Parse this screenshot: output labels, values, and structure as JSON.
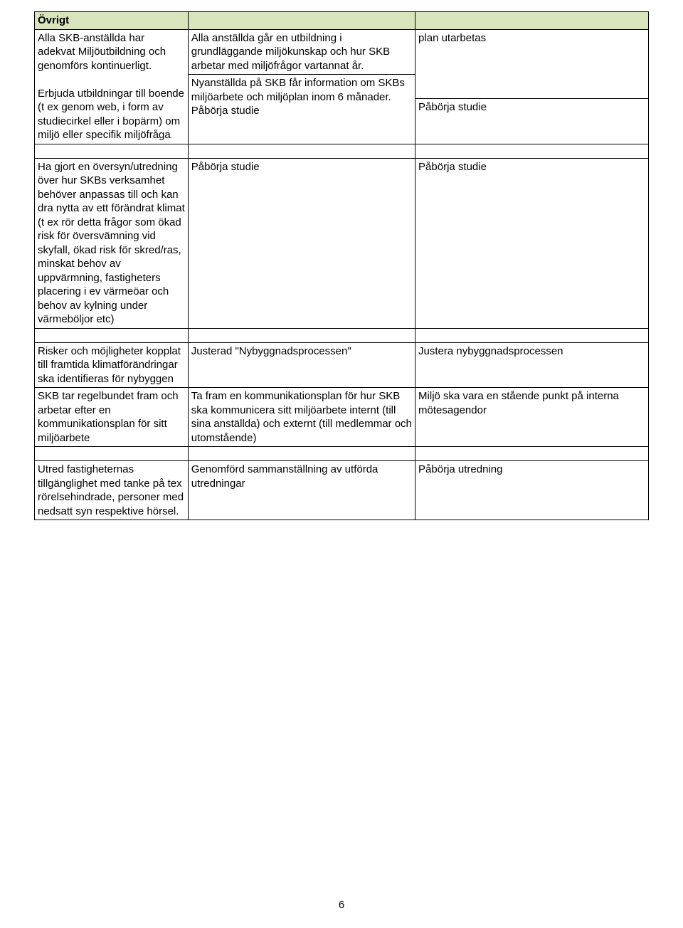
{
  "colors": {
    "header_bg": "#d8e4bc",
    "border": "#000000",
    "text": "#000000",
    "page_bg": "#ffffff"
  },
  "typography": {
    "font_family": "Arial",
    "base_fontsize_pt": 11,
    "header_weight": "bold"
  },
  "layout": {
    "col_widths_percent": [
      25,
      37,
      38
    ]
  },
  "section_header": "Övrigt",
  "rows": {
    "r1": {
      "c1": "Alla SKB-anställda har adekvat Miljöutbildning och genomförs kontinuerligt.",
      "c2": "Alla anställda går en utbildning i grundläggande miljökunskap och hur SKB arbetar med miljöfrågor vartannat år.",
      "c3": "plan utarbetas"
    },
    "r2": {
      "c2": "Nyanställda på SKB får information om SKBs miljöarbete och miljöplan inom 6 månader."
    },
    "r3": {
      "c1": "Erbjuda utbildningar till boende (t ex genom web, i form av studiecirkel eller i bopärm) om miljö eller specifik miljöfråga",
      "c2": "Påbörja studie",
      "c3": "Påbörja studie"
    },
    "r4": {
      "c1": "Ha gjort en översyn/utredning över hur SKBs verksamhet behöver anpassas till och kan dra nytta av ett förändrat klimat (t ex rör detta frågor som ökad risk för översvämning vid skyfall, ökad risk för skred/ras, minskat behov av uppvärmning, fastigheters placering i ev värmeöar och behov av kylning under värmeböljor etc)",
      "c2": "Påbörja studie",
      "c3": "Påbörja studie"
    },
    "r5": {
      "c1": "Risker och möjligheter kopplat till framtida klimatförändringar ska identifieras för nybyggen",
      "c2": "Justerad \"Nybyggnadsprocessen\"",
      "c3": "Justera nybyggnadsprocessen"
    },
    "r6": {
      "c1": "SKB tar regelbundet fram och arbetar efter en kommunikationsplan för sitt miljöarbete",
      "c2": " Ta fram  en kommunikationsplan för hur SKB ska kommunicera sitt miljöarbete internt (till sina anställda) och externt (till medlemmar och utomstående)",
      "c3": "Miljö ska vara en stående punkt på interna mötesagendor"
    },
    "r7": {
      "c1": "Utred fastigheternas tillgänglighet med tanke på tex rörelsehindrade, personer med nedsatt syn respektive hörsel.",
      "c2": "Genomförd sammanställning av utförda utredningar",
      "c3": "Påbörja utredning"
    }
  },
  "page_number": "6"
}
